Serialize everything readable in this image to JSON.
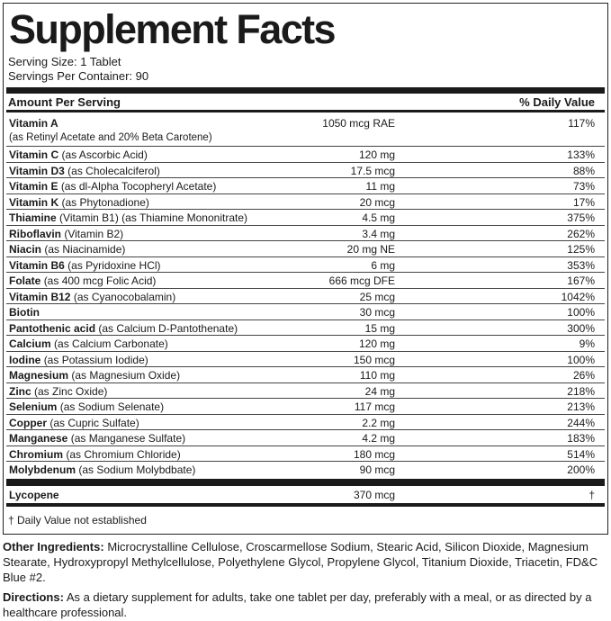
{
  "label": {
    "title": "Supplement Facts",
    "serving_size": "Serving Size: 1 Tablet",
    "servings_per_container": "Servings Per Container: 90",
    "header": {
      "amount": "Amount Per Serving",
      "daily_value": "% Daily Value"
    },
    "rows": [
      {
        "name": "Vitamin A",
        "detail": "(as Retinyl Acetate and 20% Beta Carotene)",
        "amount": "1050 mcg RAE",
        "daily_value": "117%"
      },
      {
        "name": "Vitamin C",
        "detail": "(as Ascorbic Acid)",
        "amount": "120 mg",
        "daily_value": "133%"
      },
      {
        "name": "Vitamin D3",
        "detail": "(as Cholecalciferol)",
        "amount": "17.5 mcg",
        "daily_value": "88%"
      },
      {
        "name": "Vitamin E",
        "detail": "(as dl-Alpha Tocopheryl Acetate)",
        "amount": "11 mg",
        "daily_value": "73%"
      },
      {
        "name": "Vitamin K",
        "detail": "(as Phytonadione)",
        "amount": "20 mcg",
        "daily_value": "17%"
      },
      {
        "name": "Thiamine",
        "detail": "(Vitamin B1) (as Thiamine Mononitrate)",
        "amount": "4.5 mg",
        "daily_value": "375%"
      },
      {
        "name": "Riboflavin",
        "detail": "(Vitamin B2)",
        "amount": "3.4 mg",
        "daily_value": "262%"
      },
      {
        "name": "Niacin",
        "detail": "(as Niacinamide)",
        "amount": "20 mg NE",
        "daily_value": "125%"
      },
      {
        "name": "Vitamin B6",
        "detail": "(as Pyridoxine HCl)",
        "amount": "6 mg",
        "daily_value": "353%"
      },
      {
        "name": "Folate",
        "detail": "(as 400 mcg Folic Acid)",
        "amount": "666 mcg DFE",
        "daily_value": "167%"
      },
      {
        "name": "Vitamin B12",
        "detail": "(as Cyanocobalamin)",
        "amount": "25 mcg",
        "daily_value": "1042%"
      },
      {
        "name": "Biotin",
        "amount": "30 mcg",
        "daily_value": "100%"
      },
      {
        "name": "Pantothenic acid",
        "detail": "(as Calcium D-Pantothenate)",
        "amount": "15 mg",
        "daily_value": "300%"
      },
      {
        "name": "Calcium",
        "detail": "(as Calcium Carbonate)",
        "amount": "120 mg",
        "daily_value": "9%"
      },
      {
        "name": "Iodine",
        "detail": "(as Potassium Iodide)",
        "amount": "150 mcg",
        "daily_value": "100%"
      },
      {
        "name": "Magnesium",
        "detail": "(as Magnesium Oxide)",
        "amount": "110 mg",
        "daily_value": "26%"
      },
      {
        "name": "Zinc",
        "detail": "(as Zinc Oxide)",
        "amount": "24 mg",
        "daily_value": "218%"
      },
      {
        "name": "Selenium",
        "detail": "(as Sodium Selenate)",
        "amount": "117 mcg",
        "daily_value": "213%"
      },
      {
        "name": "Copper",
        "detail": "(as Cupric Sulfate)",
        "amount": "2.2 mg",
        "daily_value": "244%"
      },
      {
        "name": "Manganese",
        "detail": "(as Manganese Sulfate)",
        "amount": "4.2 mg",
        "daily_value": "183%"
      },
      {
        "name": "Chromium",
        "detail": "(as Chromium Chloride)",
        "amount": "180 mcg",
        "daily_value": "514%"
      },
      {
        "name": "Molybdenum",
        "detail": "(as Sodium Molybdbate)",
        "amount": "90 mcg",
        "daily_value": "200%"
      }
    ],
    "extra": {
      "name": "Lycopene",
      "amount": "370 mcg",
      "daily_value": "†"
    },
    "footnote": "† Daily Value not established"
  },
  "other_ingredients": {
    "label": "Other Ingredients:",
    "text": "Microcrystalline Cellulose, Croscarmellose Sodium, Stearic Acid, Silicon Dioxide, Magnesium Stearate, Hydroxypropyl Methylcellulose, Polyethylene Glycol, Propylene Glycol, Titanium Dioxide, Triacetin, FD&C Blue #2."
  },
  "directions": {
    "label": "Directions:",
    "text": "As a dietary supplement for adults, take one tablet per day, preferably with a meal, or as directed by a healthcare professional."
  }
}
